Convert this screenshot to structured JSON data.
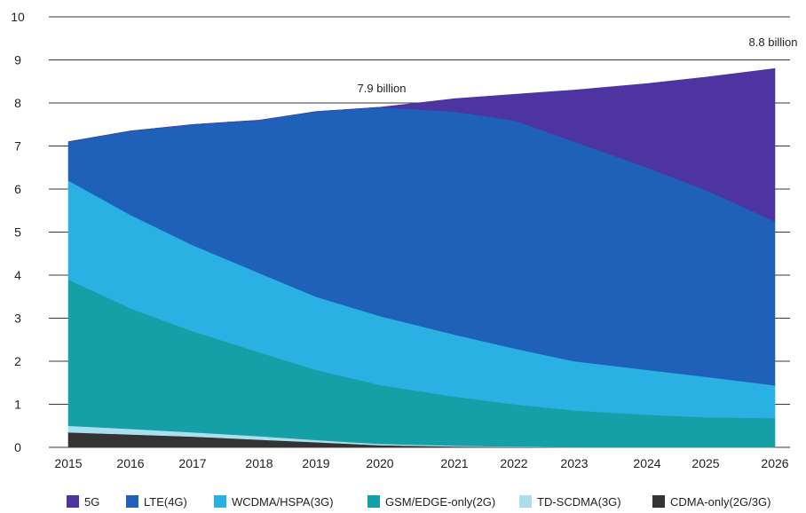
{
  "chart_data": {
    "type": "area",
    "stacked": true,
    "x": [
      2015,
      2016,
      2017,
      2018,
      2019,
      2020,
      2021,
      2022,
      2023,
      2024,
      2025,
      2026
    ],
    "xticks": [
      "2015",
      "2016",
      "2017",
      "2018",
      "2019",
      "2020",
      "2021",
      "2022",
      "2023",
      "2024",
      "2025",
      "2026"
    ],
    "ylim": [
      0,
      10
    ],
    "yticks": [
      "0",
      "1",
      "2",
      "3",
      "4",
      "5",
      "6",
      "7",
      "8",
      "9",
      "10"
    ],
    "grid": "horizontal",
    "legend": "bottom",
    "series": [
      {
        "name": "CDMA-only(2G/3G)",
        "color": "#333333",
        "values": [
          0.35,
          0.3,
          0.25,
          0.18,
          0.12,
          0.05,
          0.02,
          0.01,
          0.0,
          0.0,
          0.0,
          0.0
        ]
      },
      {
        "name": "TD-SCDMA(3G)",
        "color": "#a9e0ef",
        "values": [
          0.15,
          0.13,
          0.1,
          0.08,
          0.05,
          0.03,
          0.02,
          0.01,
          0.0,
          0.0,
          0.0,
          0.0
        ]
      },
      {
        "name": "GSM/EDGE-only(2G)",
        "color": "#14a0a6",
        "values": [
          3.4,
          2.8,
          2.35,
          1.95,
          1.63,
          1.37,
          1.14,
          0.98,
          0.86,
          0.76,
          0.7,
          0.68
        ]
      },
      {
        "name": "WCDMA/HSPA(3G)",
        "color": "#2bb0e3",
        "values": [
          2.3,
          2.17,
          2.0,
          1.84,
          1.7,
          1.6,
          1.44,
          1.3,
          1.14,
          1.04,
          0.94,
          0.76
        ]
      },
      {
        "name": "LTE(4G)",
        "color": "#1f60b8",
        "values": [
          0.9,
          1.95,
          2.8,
          3.55,
          4.3,
          4.85,
          5.18,
          5.3,
          5.1,
          4.7,
          4.34,
          3.81
        ]
      },
      {
        "name": "5G",
        "color": "#4d34a0",
        "values": [
          0.0,
          0.0,
          0.0,
          0.0,
          0.0,
          0.0,
          0.3,
          0.6,
          1.2,
          1.95,
          2.62,
          3.55
        ]
      }
    ],
    "annotations": [
      {
        "text": "7.9 billion",
        "x": 2020,
        "y": 7.9
      },
      {
        "text": "8.8 billion",
        "x": 2026,
        "y": 8.8
      }
    ]
  }
}
